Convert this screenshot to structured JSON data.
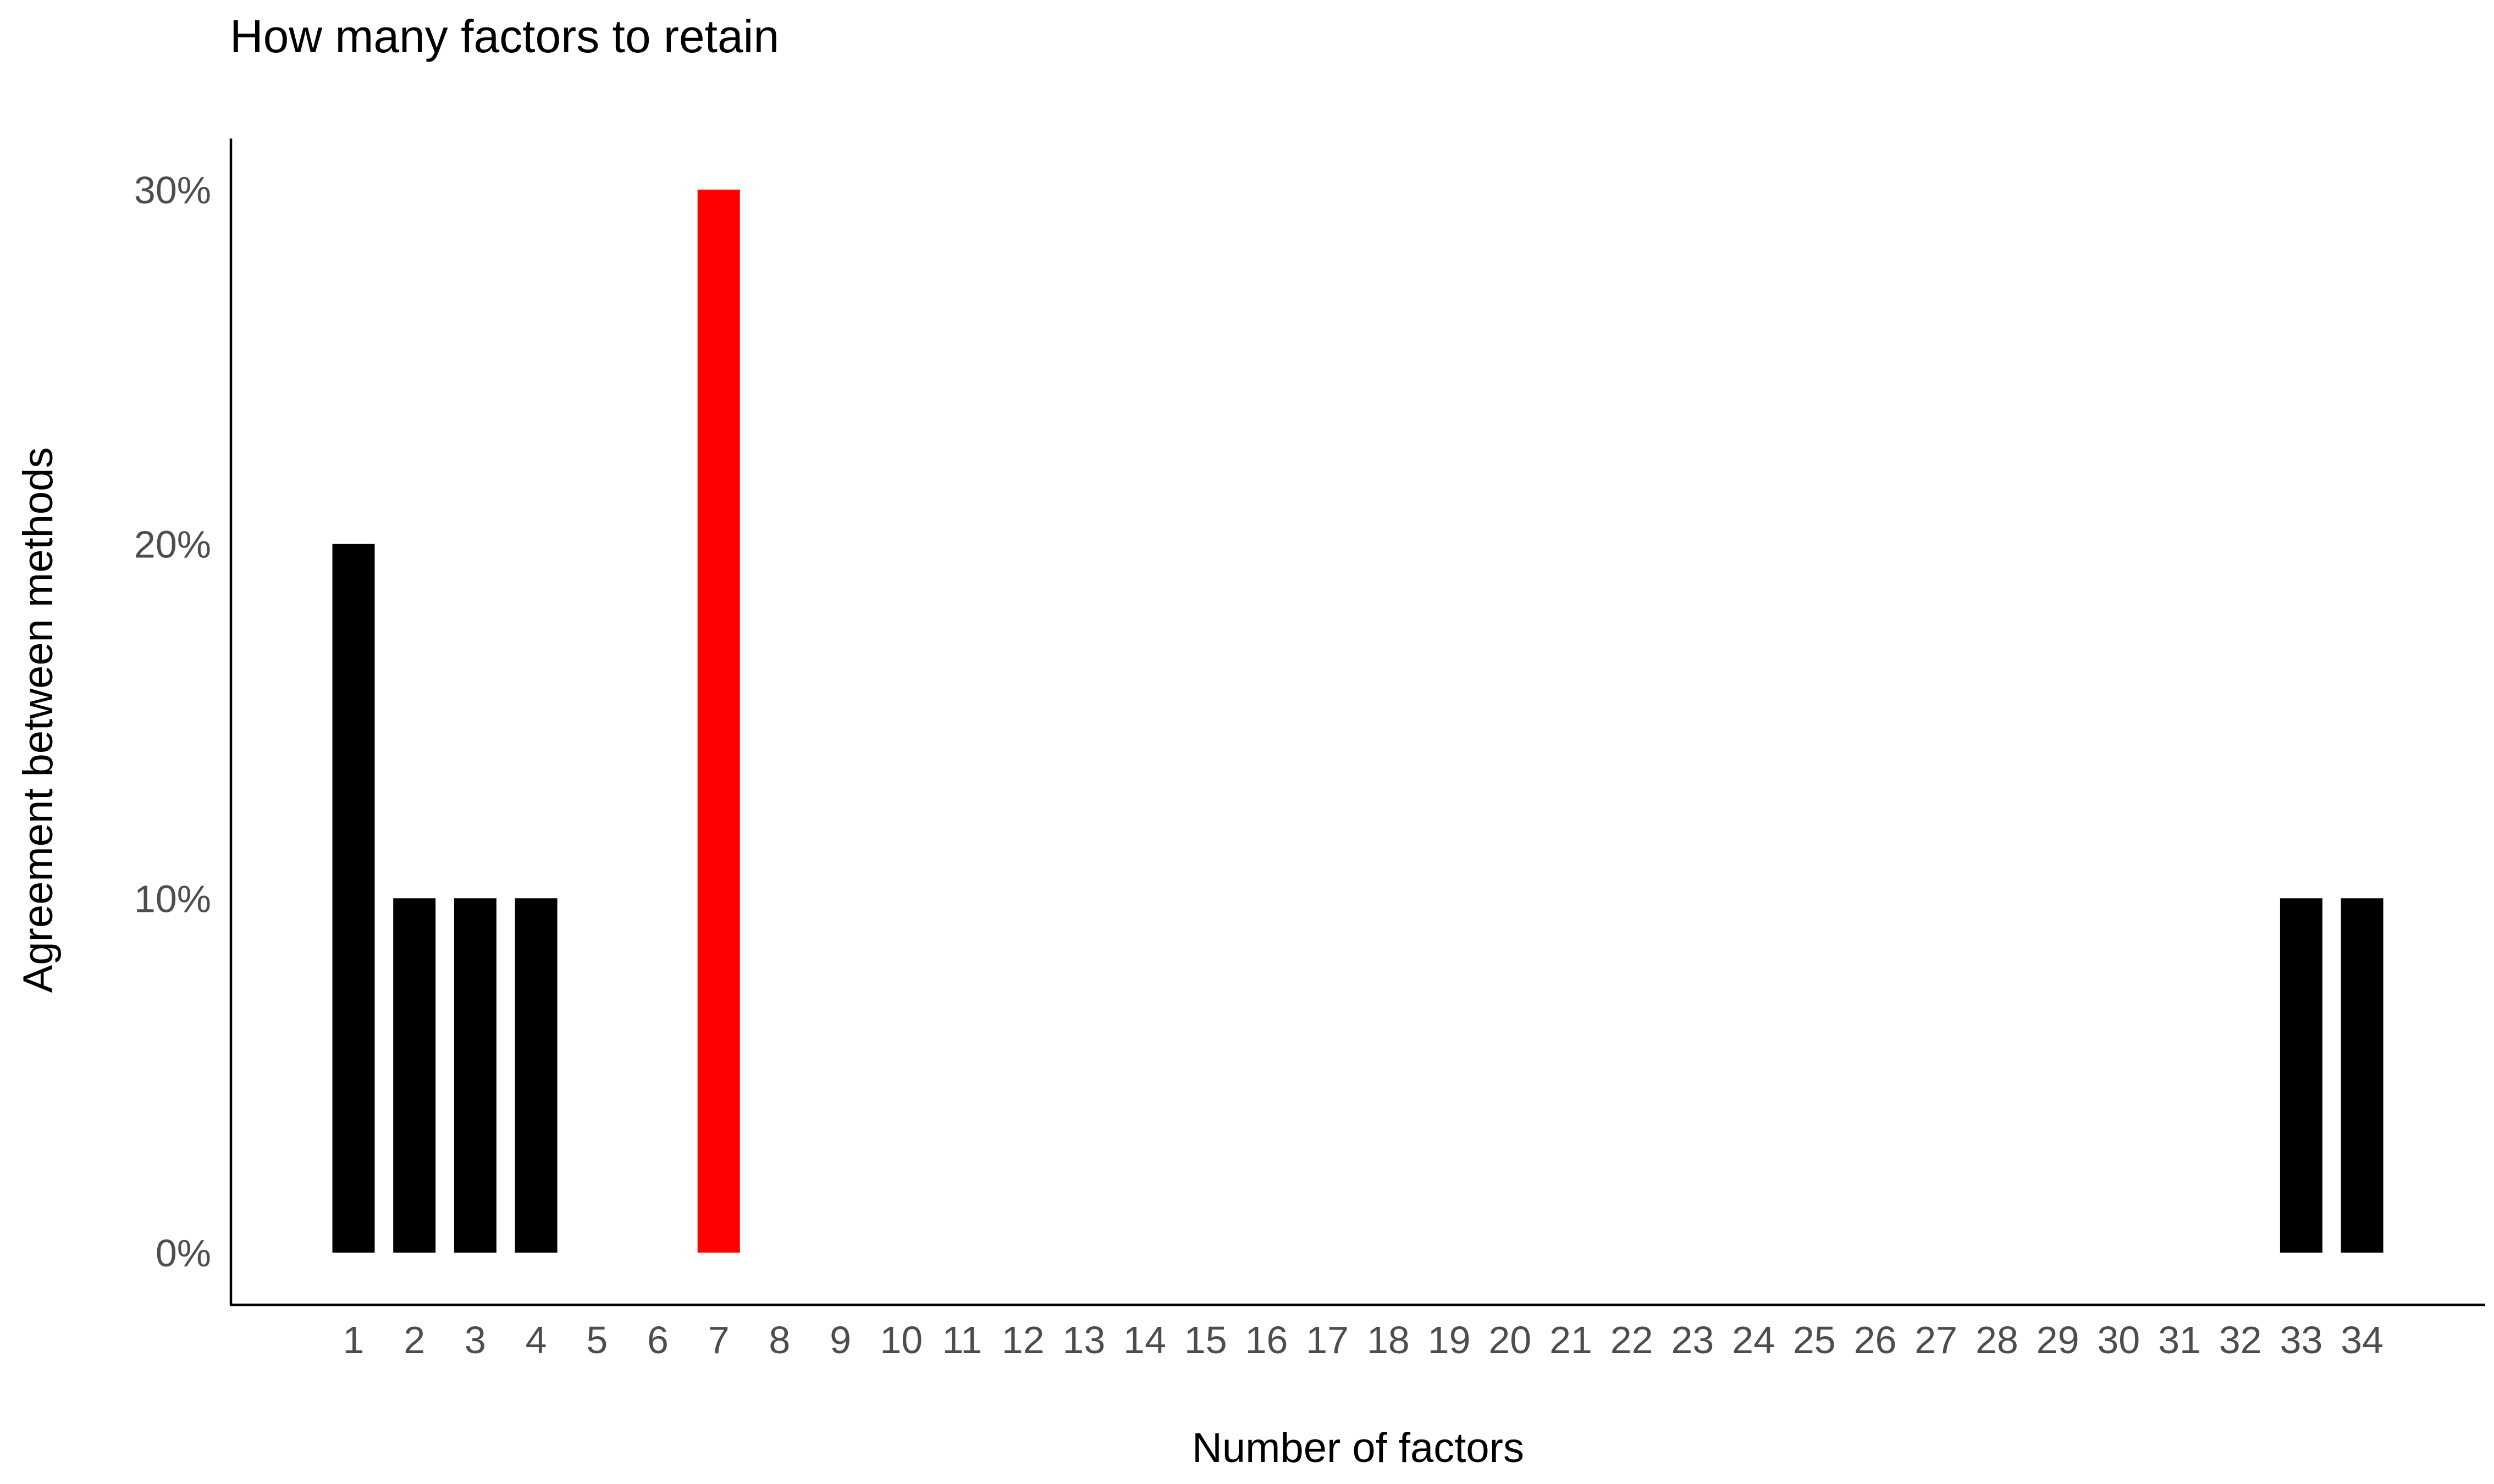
{
  "chart_data": {
    "type": "bar",
    "title": "How many factors to retain",
    "xlabel": "Number of factors",
    "ylabel": "Agreement between methods",
    "categories": [
      "1",
      "2",
      "3",
      "4",
      "5",
      "6",
      "7",
      "8",
      "9",
      "10",
      "11",
      "12",
      "13",
      "14",
      "15",
      "16",
      "17",
      "18",
      "19",
      "20",
      "21",
      "22",
      "23",
      "24",
      "25",
      "26",
      "27",
      "28",
      "29",
      "30",
      "31",
      "32",
      "33",
      "34"
    ],
    "values": [
      0.2,
      0.1,
      0.1,
      0.1,
      0,
      0,
      0.3,
      0,
      0,
      0,
      0,
      0,
      0,
      0,
      0,
      0,
      0,
      0,
      0,
      0,
      0,
      0,
      0,
      0,
      0,
      0,
      0,
      0,
      0,
      0,
      0,
      0,
      0.1,
      0.1
    ],
    "highlight_category": "7",
    "colors": {
      "default": "#000000",
      "highlight": "#ff0000"
    },
    "y_ticks": [
      0,
      0.1,
      0.2,
      0.3
    ],
    "y_tick_labels": [
      "0%",
      "10%",
      "20%",
      "30%"
    ],
    "ylim": [
      0,
      0.3
    ],
    "grid": false,
    "legend": "none"
  }
}
